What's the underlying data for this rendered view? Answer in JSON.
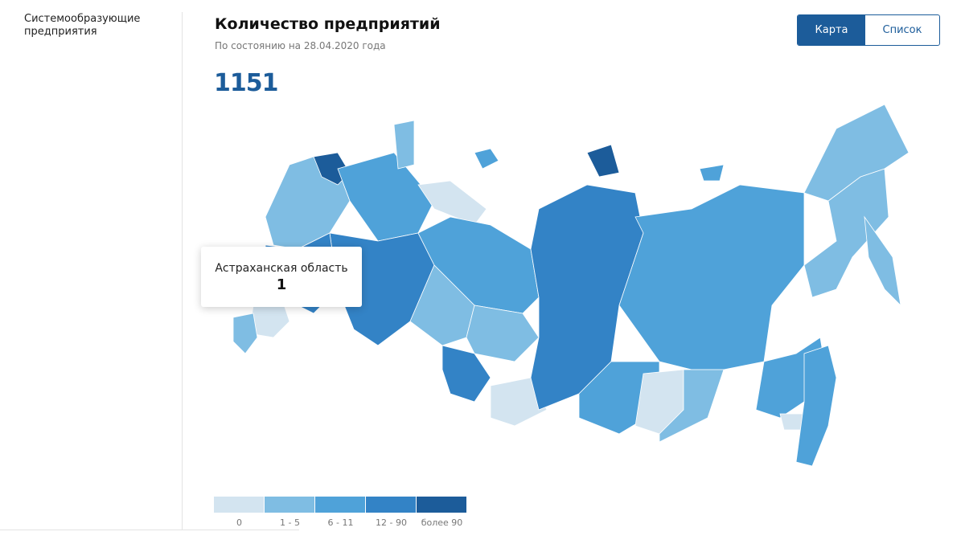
{
  "sidebar": {
    "item": "Системообразующие предприятия"
  },
  "header": {
    "title": "Количество предприятий",
    "subtitle": "По состоянию на 28.04.2020 года",
    "total": 1151
  },
  "toggle": {
    "active": "Карта",
    "inactive": "Список"
  },
  "tooltip": {
    "region": "Астраханская область",
    "value": 1
  },
  "legend": [
    {
      "label": "0",
      "color": "#d3e4f0"
    },
    {
      "label": "1 - 5",
      "color": "#7fbde3"
    },
    {
      "label": "6 - 11",
      "color": "#4fa2d9"
    },
    {
      "label": "12 - 90",
      "color": "#3383c6"
    },
    {
      "label": "более 90",
      "color": "#1c5c9a"
    }
  ]
}
